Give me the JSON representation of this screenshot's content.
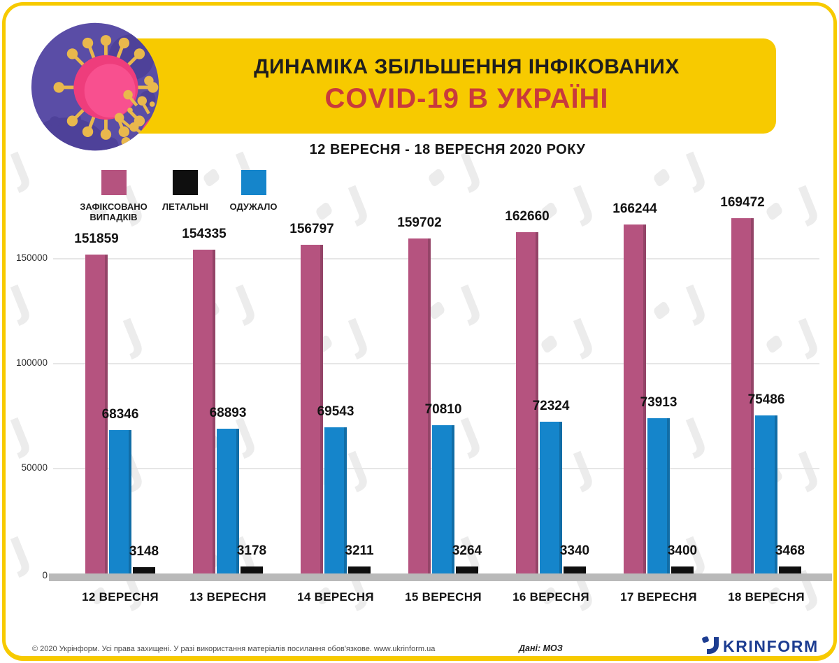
{
  "page": {
    "background": "#ffffff",
    "frame_color": "#f7ca00"
  },
  "header": {
    "title_line1": "ДИНАМІКА ЗБІЛЬШЕННЯ ІНФІКОВАНИХ",
    "title_line2": "COVID-19 В УКРАЇНІ",
    "title_color": "#1f1e1e",
    "covid_color": "#c93a3c",
    "band_color": "#f7ca00",
    "subtitle": "12 ВЕРЕСНЯ - 18 ВЕРЕСНЯ  2020 РОКУ"
  },
  "legend": [
    {
      "label": "ЗАФІКСОВАНО\nВИПАДКІВ",
      "color": "#b5537f"
    },
    {
      "label": "ЛЕТАЛЬНІ",
      "color": "#0f0f0f"
    },
    {
      "label": "ОДУЖАЛО",
      "color": "#1585cb"
    }
  ],
  "chart_data": {
    "type": "bar",
    "title": "ДИНАМІКА ЗБІЛЬШЕННЯ ІНФІКОВАНИХ COVID-19 В УКРАЇНІ",
    "subtitle": "12 ВЕРЕСНЯ - 18 ВЕРЕСНЯ 2020 РОКУ",
    "categories": [
      "12 ВЕРЕСНЯ",
      "13 ВЕРЕСНЯ",
      "14 ВЕРЕСНЯ",
      "15 ВЕРЕСНЯ",
      "16 ВЕРЕСНЯ",
      "17 ВЕРЕСНЯ",
      "18 ВЕРЕСНЯ"
    ],
    "series": [
      {
        "name": "ЗАФІКСОВАНО ВИПАДКІВ",
        "color": "#b5537f",
        "values": [
          151859,
          154335,
          156797,
          159702,
          162660,
          166244,
          169472
        ]
      },
      {
        "name": "ОДУЖАЛО",
        "color": "#1585cb",
        "values": [
          68346,
          68893,
          69543,
          70810,
          72324,
          73913,
          75486
        ]
      },
      {
        "name": "ЛЕТАЛЬНІ",
        "color": "#0f0f0f",
        "values": [
          3148,
          3178,
          3211,
          3264,
          3340,
          3400,
          3468
        ]
      }
    ],
    "xlabel": "",
    "ylabel": "",
    "ylim": [
      0,
      160000
    ],
    "yticks": [
      0,
      50000,
      100000,
      150000
    ],
    "grid": true,
    "legend_position": "top-left",
    "gridline_color": "#e6e6e6",
    "baseline_color": "#b9b9b9"
  },
  "footer": {
    "copyright": "© 2020 Укрінформ. Усі права захищені. У разі використання матеріалів посилання обов'язкове. www.ukrinform.ua",
    "source": "Дані: МОЗ",
    "logo_text": "UKRINFORM",
    "logo_color": "#1d3d91"
  }
}
